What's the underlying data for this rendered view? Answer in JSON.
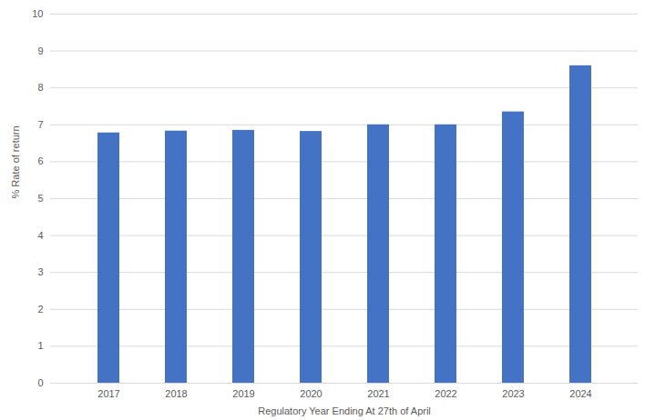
{
  "chart_data": {
    "type": "bar",
    "categories": [
      "2017",
      "2018",
      "2019",
      "2020",
      "2021",
      "2022",
      "2023",
      "2024"
    ],
    "values": [
      6.78,
      6.83,
      6.85,
      6.82,
      7.0,
      7.0,
      7.35,
      8.6
    ],
    "color": "#4472c4",
    "x_label": "Regulatory Year Ending At 27th of April",
    "y_label": "% Rate of return",
    "ylim": [
      0,
      10
    ],
    "yticks": [
      0,
      1,
      2,
      3,
      4,
      5,
      6,
      7,
      8,
      9,
      10
    ],
    "grid": true
  }
}
